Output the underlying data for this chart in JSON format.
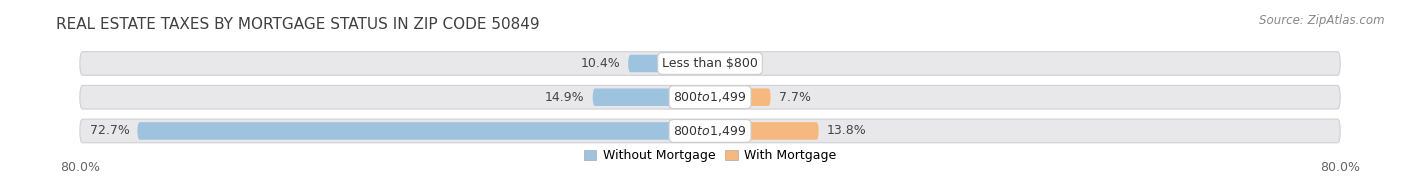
{
  "title": "REAL ESTATE TAXES BY MORTGAGE STATUS IN ZIP CODE 50849",
  "source": "Source: ZipAtlas.com",
  "rows": [
    {
      "label": "Less than $800",
      "without_mortgage": 10.4,
      "with_mortgage": 0.0
    },
    {
      "label": "$800 to $1,499",
      "without_mortgage": 14.9,
      "with_mortgage": 7.7
    },
    {
      "label": "$800 to $1,499",
      "without_mortgage": 72.7,
      "with_mortgage": 13.8
    }
  ],
  "axis_min": -80.0,
  "axis_max": 80.0,
  "axis_label_left": "80.0%",
  "axis_label_right": "80.0%",
  "color_without": "#9dc3df",
  "color_with": "#f5b97f",
  "color_bar_bg": "#e8e8eb",
  "color_bar_bg_edge": "#d0d0d5",
  "legend_without": "Without Mortgage",
  "legend_with": "With Mortgage",
  "title_fontsize": 11,
  "source_fontsize": 8.5,
  "tick_fontsize": 9,
  "value_fontsize": 9,
  "label_fontsize": 9
}
